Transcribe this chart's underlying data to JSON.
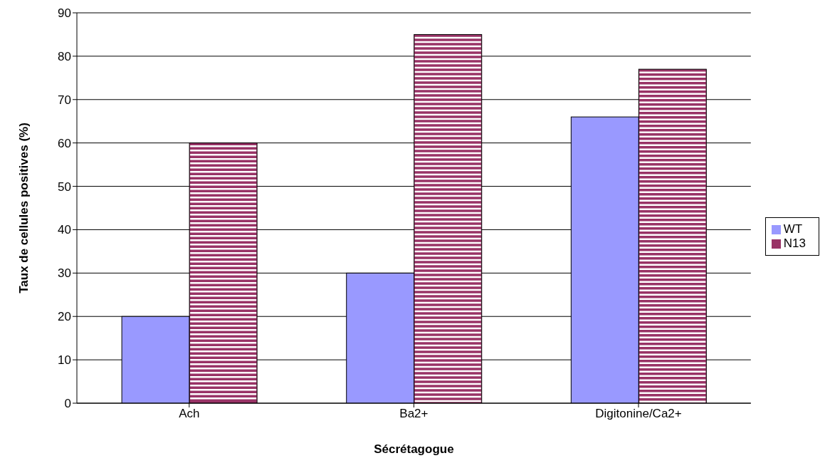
{
  "chart_data": {
    "type": "bar",
    "xlabel": "Sécrétagogue",
    "ylabel": "Taux de cellules positives (%)",
    "categories": [
      "Ach",
      "Ba2+",
      "Digitonine/Ca2+"
    ],
    "series": [
      {
        "name": "WT",
        "color": "#9999ff",
        "values": [
          20,
          30,
          66
        ]
      },
      {
        "name": "N13",
        "color": "#993366",
        "values": [
          60,
          85,
          77
        ]
      }
    ],
    "ylim": [
      0,
      90
    ],
    "yticks": [
      0,
      10,
      20,
      30,
      40,
      50,
      60,
      70,
      80,
      90
    ],
    "grid": "y",
    "legend": "right"
  }
}
